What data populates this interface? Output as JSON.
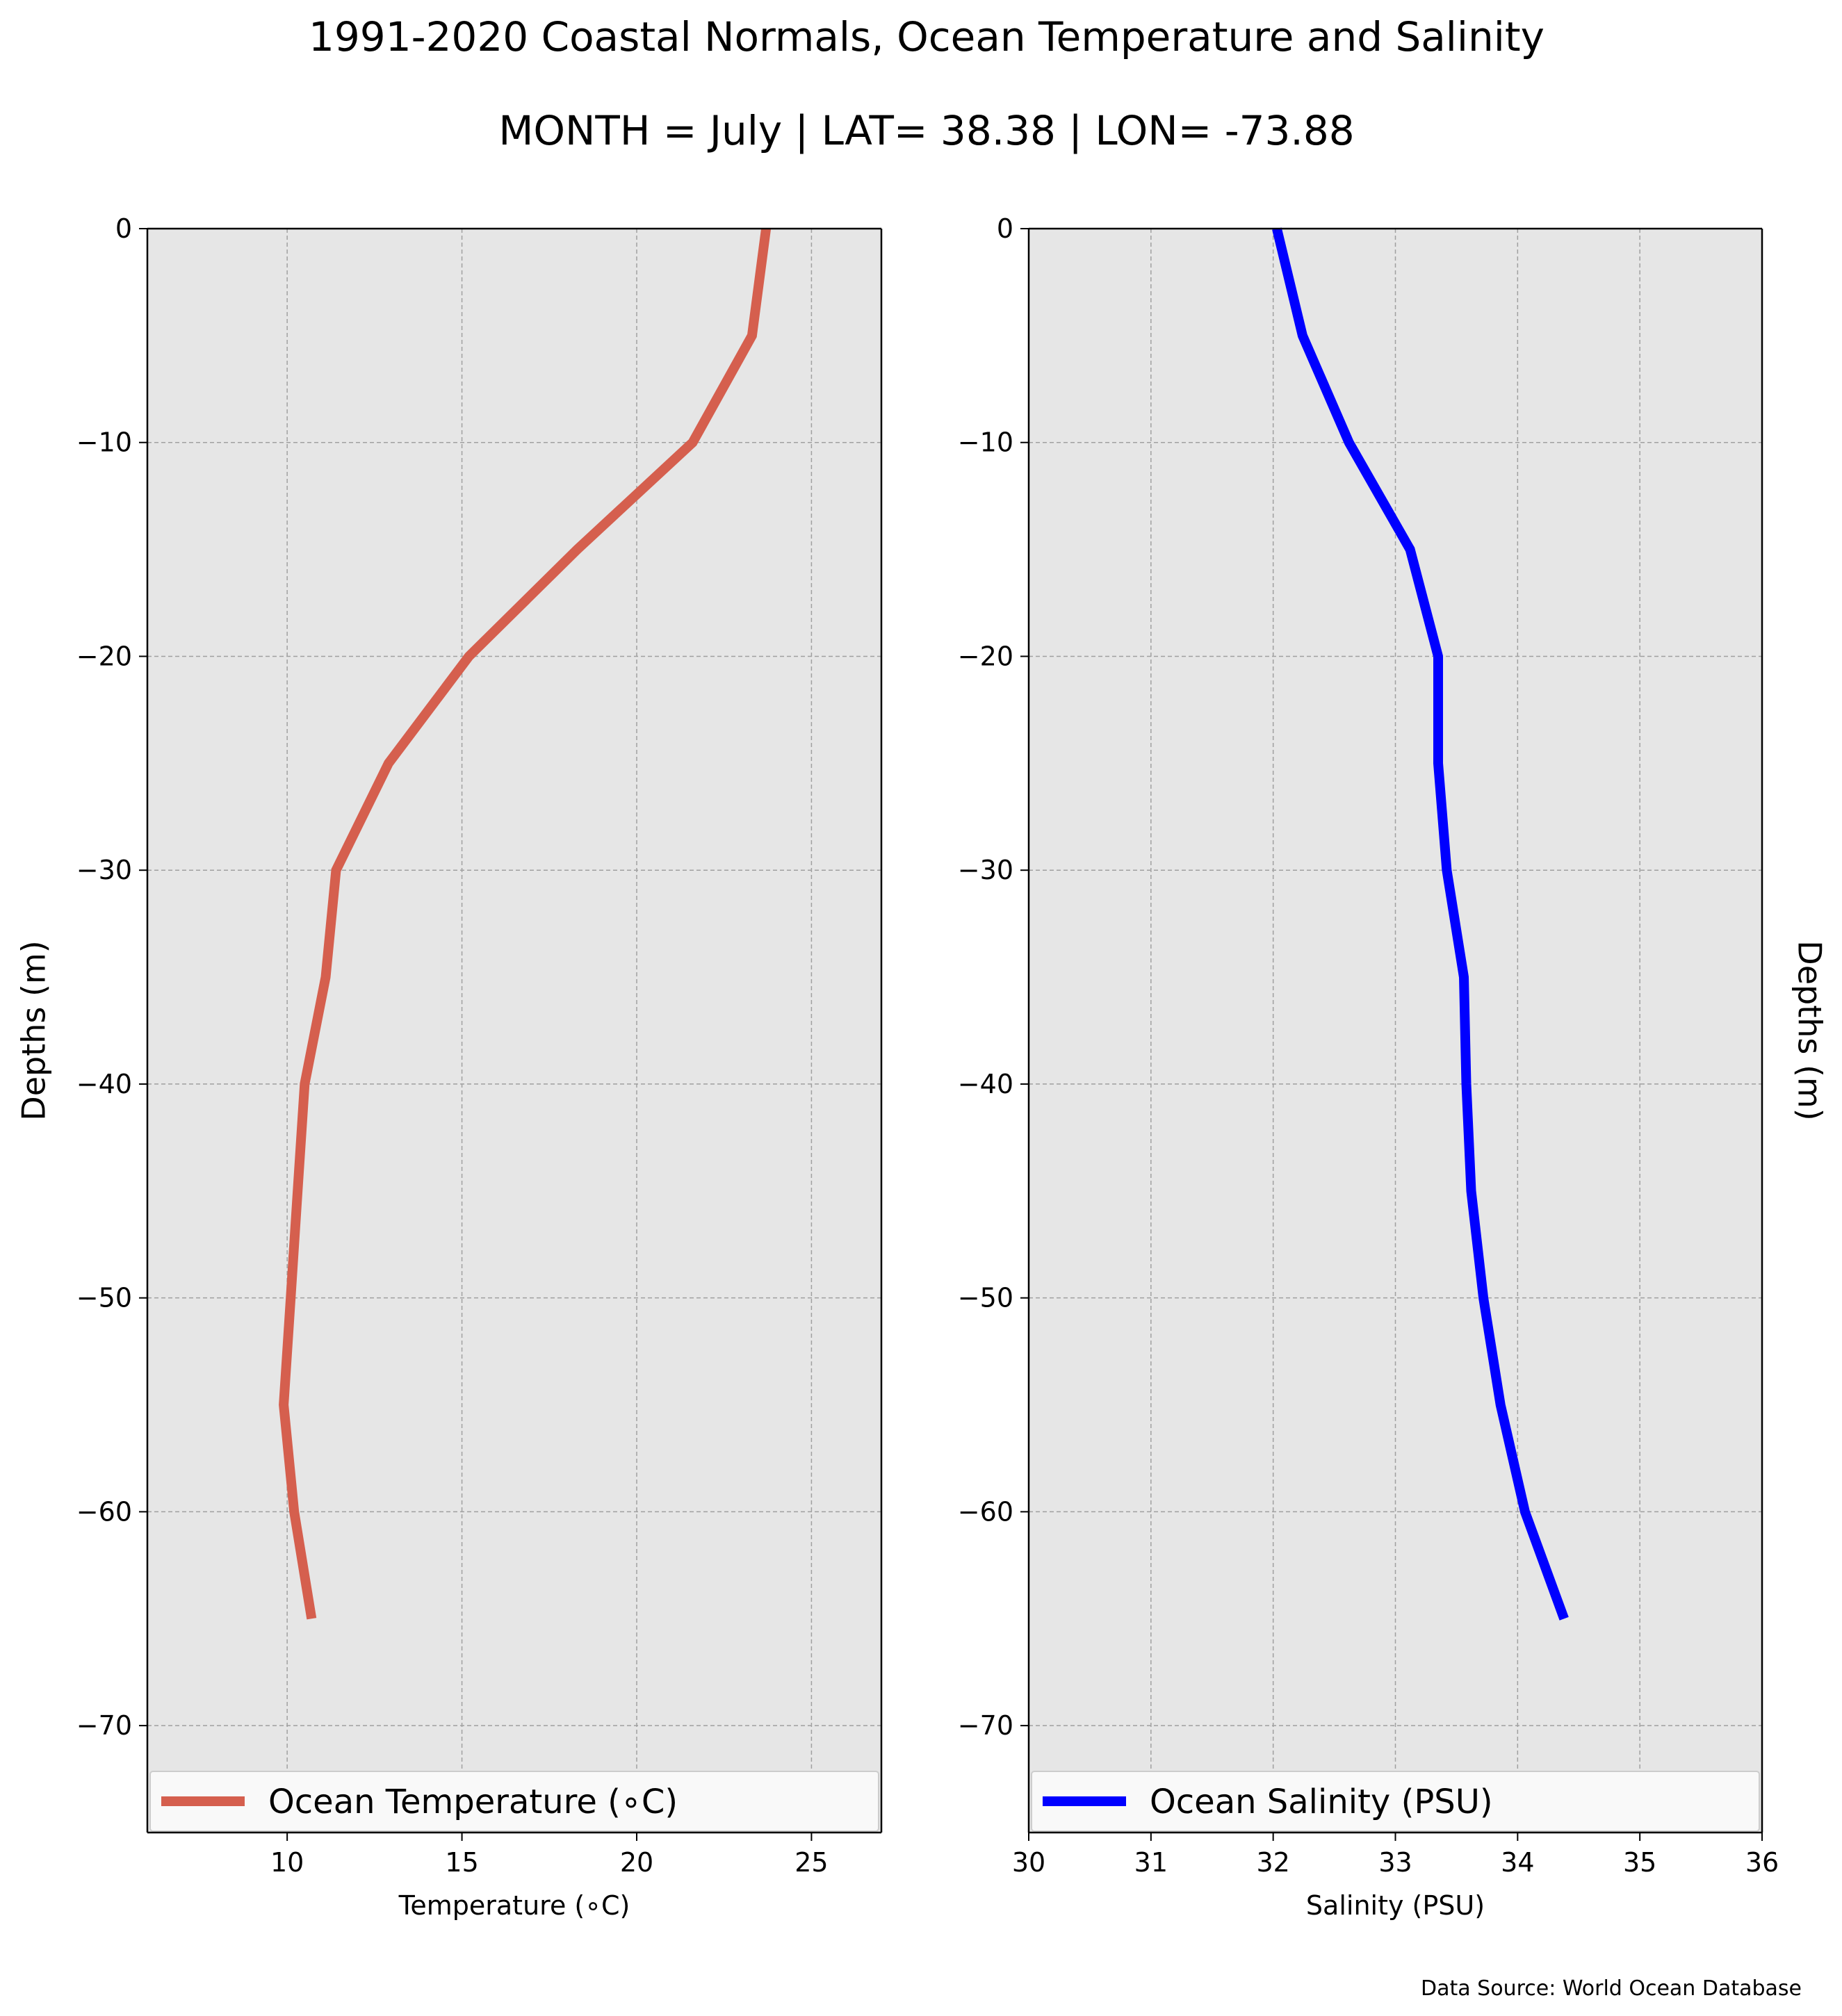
{
  "title": "1991-2020 Coastal Normals, Ocean Temperature and Salinity",
  "subtitle": "MONTH = July | LAT= 38.38 | LON= -73.88",
  "source": "Data Source: World Ocean Database",
  "colors": {
    "temperature": "#d55f4e",
    "salinity": "#0000ff",
    "plot_bg": "#e6e6e6",
    "grid": "#a0a0a0"
  },
  "chart_data": [
    {
      "type": "line",
      "xlabel": "Temperature ($^\\circ$C)",
      "xlabel_display": "Temperature (∘C)",
      "ylabel": "Depths (m)",
      "xlim": [
        6,
        27
      ],
      "ylim": [
        -75,
        0
      ],
      "x_ticks": [
        10,
        15,
        20,
        25
      ],
      "y_ticks": [
        0,
        -10,
        -20,
        -30,
        -40,
        -50,
        -60,
        -70
      ],
      "y_tick_labels": [
        "0",
        "−10",
        "−20",
        "−30",
        "−40",
        "−50",
        "−60",
        "−70"
      ],
      "grid": true,
      "legend_position": "lower center",
      "series": [
        {
          "name": "Ocean Temperature ($^\\circ$C)",
          "name_display": "Ocean Temperature (∘C)",
          "color": "#d55f4e",
          "depth": [
            0,
            -5,
            -10,
            -15,
            -20,
            -25,
            -30,
            -35,
            -40,
            -45,
            -50,
            -55,
            -60,
            -65
          ],
          "values": [
            23.7,
            23.3,
            21.6,
            18.3,
            15.2,
            12.9,
            11.4,
            11.1,
            10.5,
            10.3,
            10.1,
            9.9,
            10.2,
            10.7
          ]
        }
      ]
    },
    {
      "type": "line",
      "xlabel": "Salinity (PSU)",
      "ylabel": "Depths (m)",
      "xlim": [
        30,
        36
      ],
      "ylim": [
        -75,
        0
      ],
      "x_ticks": [
        30,
        31,
        32,
        33,
        34,
        35,
        36
      ],
      "y_ticks": [
        0,
        -10,
        -20,
        -30,
        -40,
        -50,
        -60,
        -70
      ],
      "y_tick_labels": [
        "0",
        "−10",
        "−20",
        "−30",
        "−40",
        "−50",
        "−60",
        "−70"
      ],
      "grid": true,
      "legend_position": "lower center",
      "series": [
        {
          "name": "Ocean Salinity (PSU)",
          "color": "#0000ff",
          "depth": [
            0,
            -5,
            -10,
            -15,
            -20,
            -25,
            -30,
            -35,
            -40,
            -45,
            -50,
            -55,
            -60,
            -65
          ],
          "values": [
            32.03,
            32.24,
            32.62,
            33.12,
            33.35,
            33.35,
            33.42,
            33.56,
            33.58,
            33.62,
            33.72,
            33.86,
            34.06,
            34.38
          ]
        }
      ]
    }
  ]
}
